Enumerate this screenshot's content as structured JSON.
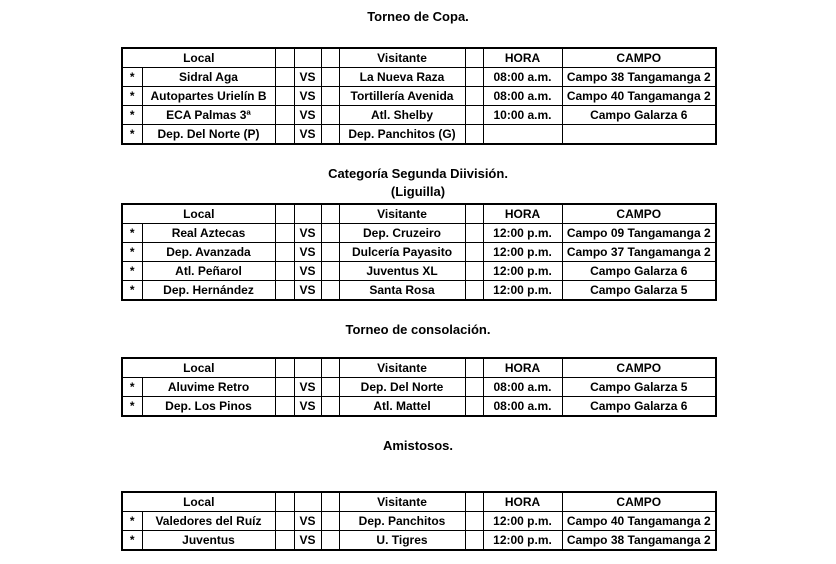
{
  "page": {
    "background_color": "#ffffff",
    "text_color": "#000000",
    "border_color": "#000000"
  },
  "glyphs": {
    "star": "*",
    "vs": "VS"
  },
  "headers": {
    "local": "Local",
    "visitante": "Visitante",
    "hora": "HORA",
    "campo": "CAMPO"
  },
  "sections": [
    {
      "title_lines": [
        "Torneo de Copa."
      ],
      "rows": [
        {
          "local": "Sidral Aga",
          "visitante": "La Nueva Raza",
          "hora": "08:00 a.m.",
          "campo": "Campo 38 Tangamanga 2"
        },
        {
          "local": "Autopartes Urielín B",
          "visitante": "Tortillería Avenida",
          "hora": "08:00 a.m.",
          "campo": "Campo 40 Tangamanga 2"
        },
        {
          "local": "ECA Palmas 3ª",
          "visitante": "Atl. Shelby",
          "hora": "10:00 a.m.",
          "campo": "Campo Galarza 6"
        },
        {
          "local": "Dep. Del Norte (P)",
          "visitante": "Dep. Panchitos (G)",
          "hora": "",
          "campo": ""
        }
      ]
    },
    {
      "title_lines": [
        "Categoría Segunda Diivisión.",
        "(Liguilla)"
      ],
      "rows": [
        {
          "local": "Real Aztecas",
          "visitante": "Dep. Cruzeiro",
          "hora": "12:00 p.m.",
          "campo": "Campo 09 Tangamanga 2"
        },
        {
          "local": "Dep. Avanzada",
          "visitante": "Dulcería Payasito",
          "hora": "12:00 p.m.",
          "campo": "Campo 37 Tangamanga 2"
        },
        {
          "local": "Atl. Peñarol",
          "visitante": "Juventus XL",
          "hora": "12:00 p.m.",
          "campo": "Campo Galarza 6"
        },
        {
          "local": "Dep. Hernández",
          "visitante": "Santa Rosa",
          "hora": "12:00 p.m.",
          "campo": "Campo Galarza 5"
        }
      ]
    },
    {
      "title_lines": [
        "Torneo de consolación."
      ],
      "rows": [
        {
          "local": "Aluvime Retro",
          "visitante": "Dep. Del Norte",
          "hora": "08:00 a.m.",
          "campo": "Campo Galarza 5"
        },
        {
          "local": "Dep. Los Pinos",
          "visitante": "Atl. Mattel",
          "hora": "08:00 a.m.",
          "campo": "Campo Galarza 6"
        }
      ]
    },
    {
      "title_lines": [
        "Amistosos."
      ],
      "rows": [
        {
          "local": "Valedores del Ruíz",
          "visitante": "Dep. Panchitos",
          "hora": "12:00 p.m.",
          "campo": "Campo 40 Tangamanga 2"
        },
        {
          "local": "Juventus",
          "visitante": "U. Tigres",
          "hora": "12:00 p.m.",
          "campo": "Campo 38 Tangamanga 2"
        }
      ]
    }
  ]
}
